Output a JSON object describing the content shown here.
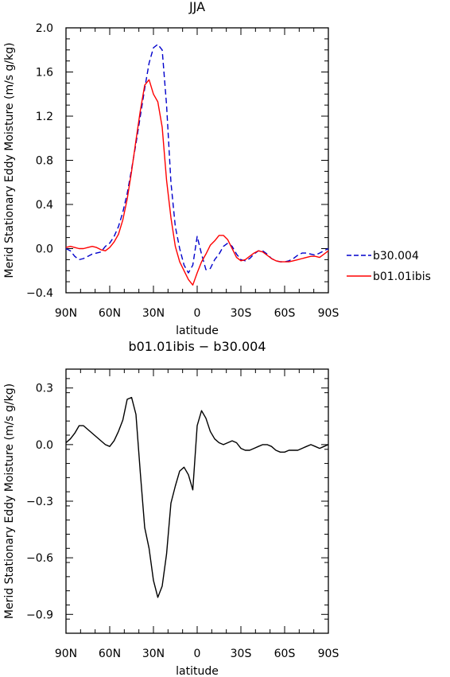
{
  "chart_data": [
    {
      "type": "line",
      "title": "JJA",
      "xlabel": "latitude",
      "ylabel": "Merid Stationary Eddy Moisture (m/s g/kg)",
      "x_ticks": [
        90,
        60,
        30,
        0,
        -30,
        -60,
        -90
      ],
      "x_tick_labels": [
        "90N",
        "60N",
        "30N",
        "0",
        "30S",
        "60S",
        "90S"
      ],
      "xlim": [
        90,
        -90
      ],
      "ylim": [
        -0.4,
        2.0
      ],
      "y_ticks": [
        -0.4,
        0.0,
        0.4,
        0.8,
        1.2,
        1.6,
        2.0
      ],
      "y_tick_labels": [
        "−0.4",
        "0.0",
        "0.4",
        "0.8",
        "1.2",
        "1.6",
        "2.0"
      ],
      "legend_position": "right",
      "series": [
        {
          "name": "b30.004",
          "color": "#0000cc",
          "dash": "dashed",
          "x": [
            90,
            87,
            84,
            81,
            78,
            75,
            72,
            69,
            66,
            63,
            60,
            57,
            54,
            51,
            48,
            45,
            42,
            39,
            36,
            33,
            30,
            27,
            24,
            21,
            18,
            15,
            12,
            9,
            6,
            3,
            0,
            -3,
            -6,
            -9,
            -12,
            -15,
            -18,
            -21,
            -24,
            -27,
            -30,
            -33,
            -36,
            -39,
            -42,
            -45,
            -48,
            -51,
            -54,
            -57,
            -60,
            -63,
            -66,
            -69,
            -72,
            -75,
            -78,
            -81,
            -84,
            -87,
            -90
          ],
          "y": [
            0.0,
            -0.02,
            -0.07,
            -0.1,
            -0.09,
            -0.07,
            -0.05,
            -0.04,
            -0.03,
            0.02,
            0.05,
            0.11,
            0.2,
            0.33,
            0.5,
            0.72,
            0.95,
            1.2,
            1.45,
            1.68,
            1.82,
            1.85,
            1.8,
            1.3,
            0.6,
            0.2,
            0.0,
            -0.15,
            -0.22,
            -0.15,
            0.11,
            -0.05,
            -0.19,
            -0.18,
            -0.1,
            -0.05,
            0.02,
            0.05,
            0.02,
            -0.05,
            -0.1,
            -0.11,
            -0.09,
            -0.05,
            -0.02,
            -0.02,
            -0.05,
            -0.09,
            -0.11,
            -0.12,
            -0.12,
            -0.11,
            -0.09,
            -0.06,
            -0.04,
            -0.04,
            -0.05,
            -0.06,
            -0.04,
            -0.02,
            0.0
          ]
        },
        {
          "name": "b01.01ibis",
          "color": "#ff0000",
          "dash": "solid",
          "x": [
            90,
            87,
            84,
            81,
            78,
            75,
            72,
            69,
            66,
            63,
            60,
            57,
            54,
            51,
            48,
            45,
            42,
            39,
            36,
            33,
            30,
            27,
            24,
            21,
            18,
            15,
            12,
            9,
            6,
            3,
            0,
            -3,
            -6,
            -9,
            -12,
            -15,
            -18,
            -21,
            -24,
            -27,
            -30,
            -33,
            -36,
            -39,
            -42,
            -45,
            -48,
            -51,
            -54,
            -57,
            -60,
            -63,
            -66,
            -69,
            -72,
            -75,
            -78,
            -81,
            -84,
            -87,
            -90
          ],
          "y": [
            0.01,
            0.02,
            0.01,
            0.0,
            0.0,
            0.01,
            0.02,
            0.01,
            -0.01,
            -0.02,
            0.01,
            0.06,
            0.13,
            0.26,
            0.45,
            0.7,
            0.98,
            1.25,
            1.48,
            1.53,
            1.4,
            1.33,
            1.1,
            0.62,
            0.28,
            0.02,
            -0.12,
            -0.2,
            -0.28,
            -0.33,
            -0.22,
            -0.12,
            -0.05,
            0.03,
            0.07,
            0.12,
            0.12,
            0.08,
            0.0,
            -0.08,
            -0.11,
            -0.1,
            -0.07,
            -0.04,
            -0.02,
            -0.03,
            -0.06,
            -0.09,
            -0.11,
            -0.12,
            -0.12,
            -0.12,
            -0.11,
            -0.1,
            -0.09,
            -0.08,
            -0.07,
            -0.07,
            -0.08,
            -0.05,
            -0.02
          ]
        }
      ]
    },
    {
      "type": "line",
      "title": "b01.01ibis − b30.004",
      "xlabel": "latitude",
      "ylabel": "Merid Stationary Eddy Moisture (m/s g/kg)",
      "x_ticks": [
        90,
        60,
        30,
        0,
        -30,
        -60,
        -90
      ],
      "x_tick_labels": [
        "90N",
        "60N",
        "30N",
        "0",
        "30S",
        "60S",
        "90S"
      ],
      "xlim": [
        90,
        -90
      ],
      "ylim": [
        -1.0,
        0.4
      ],
      "y_ticks": [
        -0.9,
        -0.6,
        -0.3,
        0.0,
        0.3
      ],
      "y_tick_labels": [
        "−0.9",
        "−0.6",
        "−0.3",
        "0.0",
        "0.3"
      ],
      "series": [
        {
          "name": "",
          "color": "#000000",
          "dash": "solid",
          "x": [
            90,
            87,
            84,
            81,
            78,
            75,
            72,
            69,
            66,
            63,
            60,
            57,
            54,
            51,
            48,
            45,
            42,
            39,
            36,
            33,
            30,
            27,
            24,
            21,
            18,
            15,
            12,
            9,
            6,
            3,
            0,
            -3,
            -6,
            -9,
            -12,
            -15,
            -18,
            -21,
            -24,
            -27,
            -30,
            -33,
            -36,
            -39,
            -42,
            -45,
            -48,
            -51,
            -54,
            -57,
            -60,
            -63,
            -66,
            -69,
            -72,
            -75,
            -78,
            -81,
            -84,
            -87,
            -90
          ],
          "y": [
            0.01,
            0.03,
            0.06,
            0.1,
            0.1,
            0.08,
            0.06,
            0.04,
            0.02,
            0.0,
            -0.01,
            0.02,
            0.07,
            0.13,
            0.24,
            0.25,
            0.16,
            -0.15,
            -0.44,
            -0.55,
            -0.72,
            -0.81,
            -0.75,
            -0.58,
            -0.31,
            -0.22,
            -0.14,
            -0.12,
            -0.16,
            -0.24,
            0.1,
            0.18,
            0.14,
            0.07,
            0.03,
            0.01,
            0.0,
            0.01,
            0.02,
            0.01,
            -0.02,
            -0.03,
            -0.03,
            -0.02,
            -0.01,
            0.0,
            0.0,
            -0.01,
            -0.03,
            -0.04,
            -0.04,
            -0.03,
            -0.03,
            -0.03,
            -0.02,
            -0.01,
            0.0,
            -0.01,
            -0.02,
            -0.01,
            0.0
          ]
        }
      ]
    }
  ]
}
